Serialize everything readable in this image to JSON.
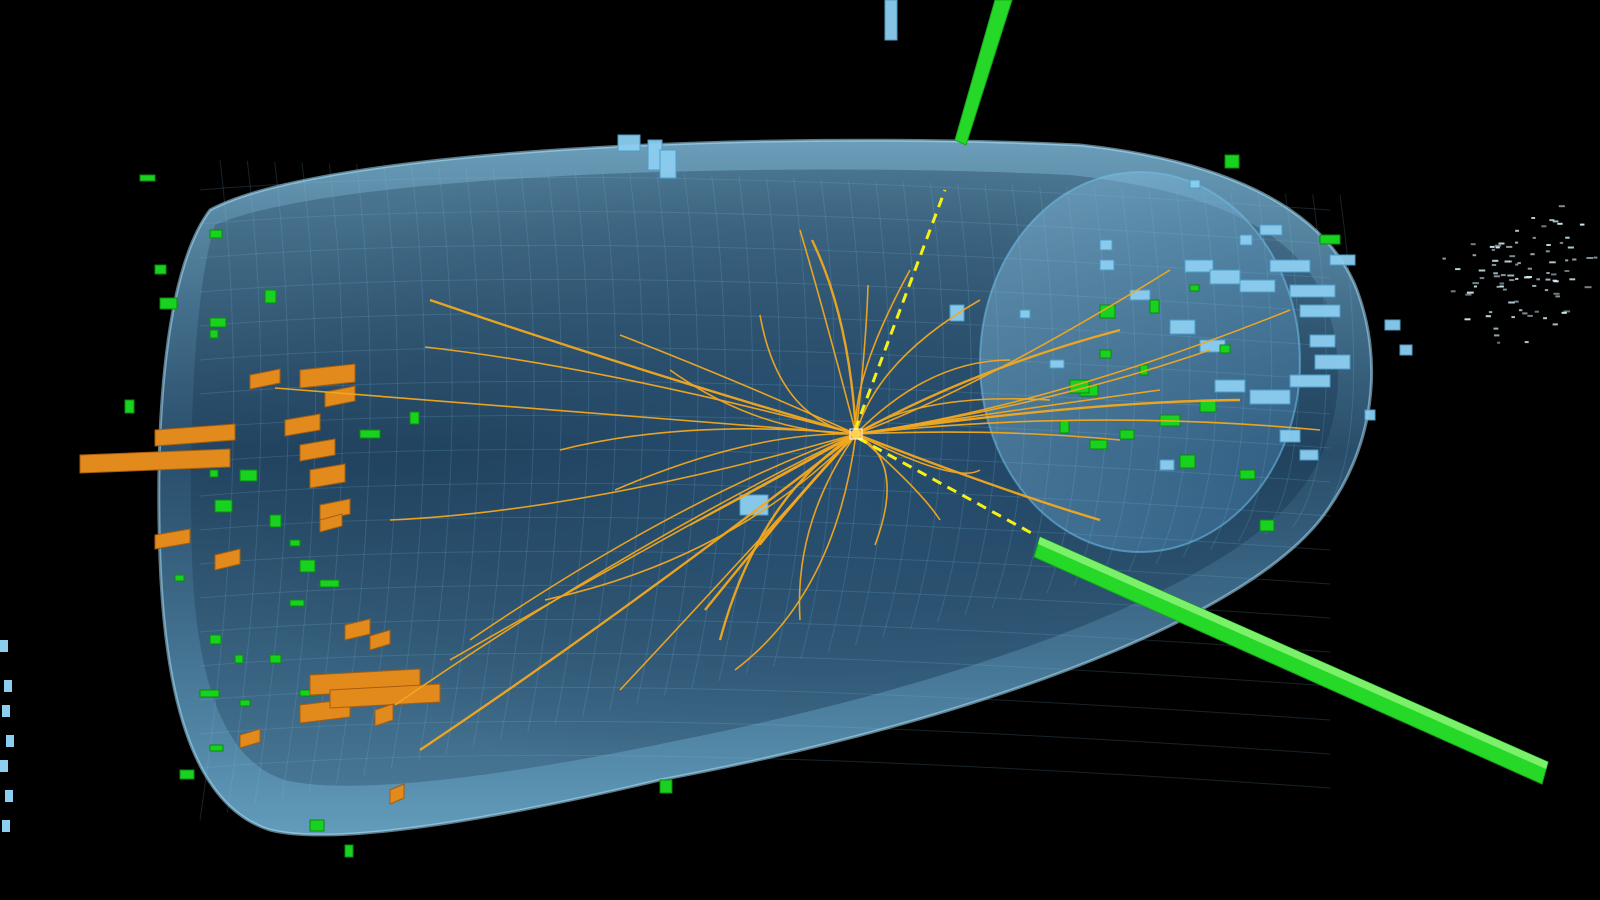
{
  "scene": {
    "subject": "particle-collision-event-display",
    "colors": {
      "background": "#000000",
      "detector_barrel": "#7ec8f0",
      "detector_mesh": "#5aa9d8",
      "tracks": "#f2a81f",
      "hadronic_deposits": "#e38a1c",
      "em_deposits": "#19d11f",
      "photon_candidates": "#2ee22e",
      "missing_energy": "#f6f01a",
      "forward_hits": "#cfe9f2"
    },
    "elements": [
      "detector-barrel",
      "charged-particle-tracks",
      "orange-calorimeter-deposits",
      "green-calorimeter-deposits",
      "light-blue-calorimeter-deposits",
      "high-energy-green-beams",
      "yellow-dashed-missing-energy-lines",
      "forward-hit-cluster"
    ]
  }
}
